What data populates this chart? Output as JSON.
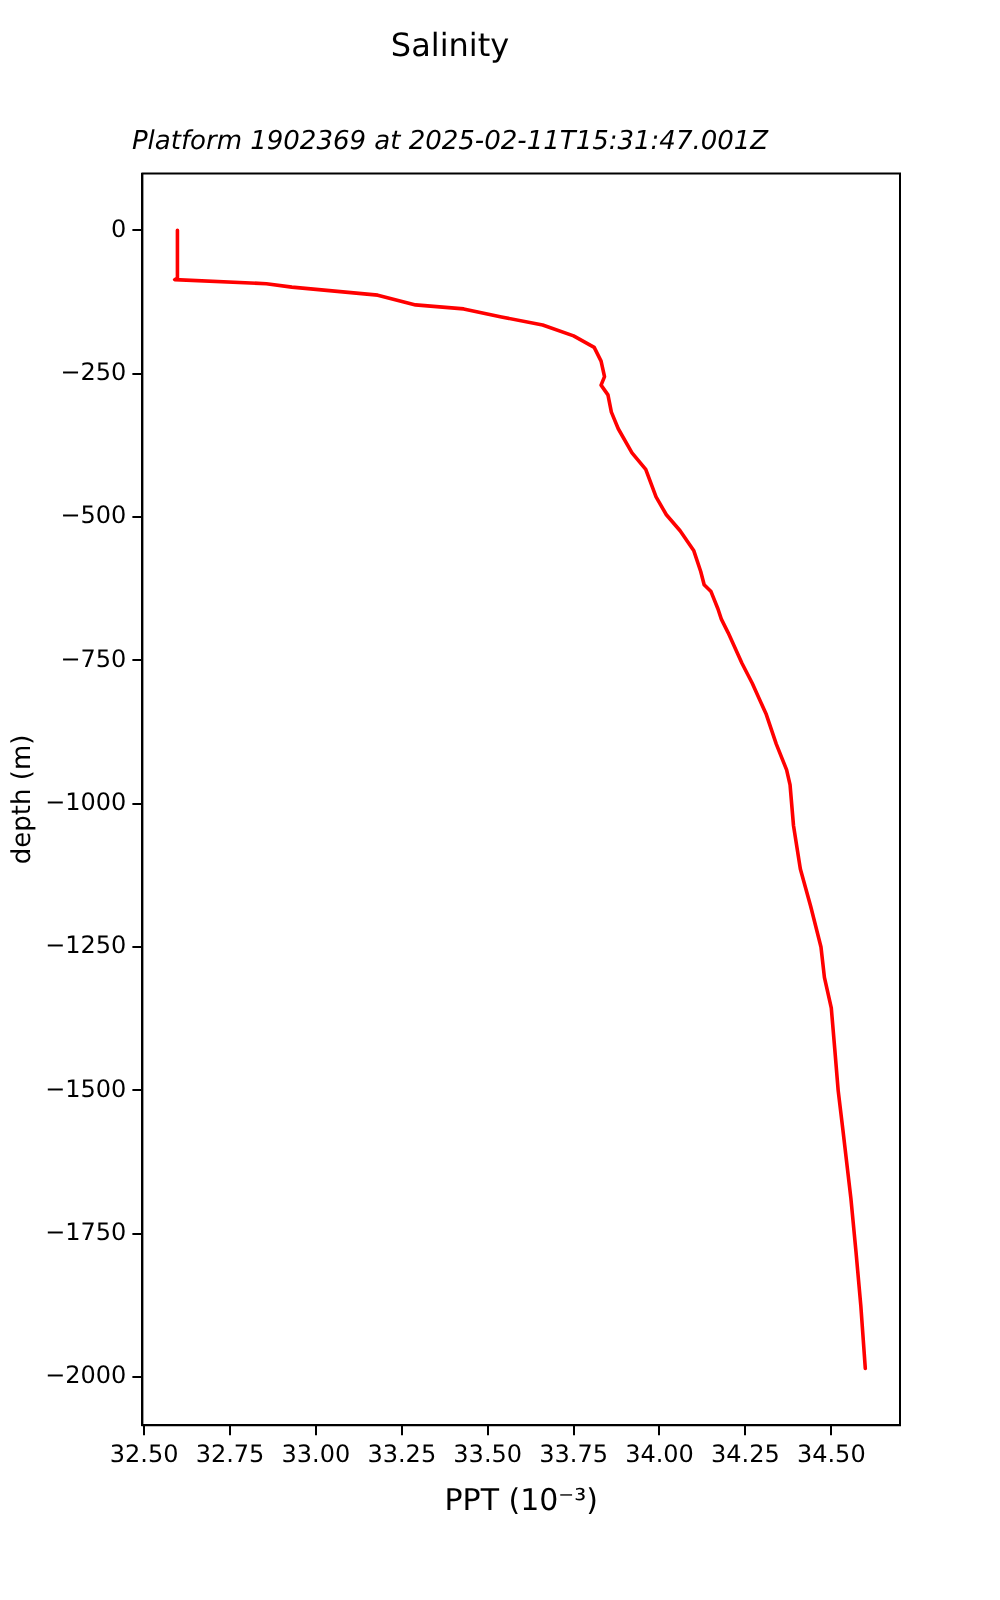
{
  "chart_data": {
    "type": "line",
    "title": "Salinity",
    "subtitle": "Platform 1902369 at 2025-02-11T15:31:47.001Z",
    "xlabel": "PPT (10⁻³)",
    "ylabel": "depth (m)",
    "xlim": [
      32.495,
      34.7
    ],
    "ylim": [
      -2084,
      99
    ],
    "xticks": [
      {
        "value": 32.5,
        "label": "32.50"
      },
      {
        "value": 32.75,
        "label": "32.75"
      },
      {
        "value": 33.0,
        "label": "33.00"
      },
      {
        "value": 33.25,
        "label": "33.25"
      },
      {
        "value": 33.5,
        "label": "33.50"
      },
      {
        "value": 33.75,
        "label": "33.75"
      },
      {
        "value": 34.0,
        "label": "34.00"
      },
      {
        "value": 34.25,
        "label": "34.25"
      },
      {
        "value": 34.5,
        "label": "34.50"
      }
    ],
    "yticks": [
      {
        "value": 0,
        "label": "0"
      },
      {
        "value": -250,
        "label": "−250"
      },
      {
        "value": -500,
        "label": "−500"
      },
      {
        "value": -750,
        "label": "−750"
      },
      {
        "value": -1000,
        "label": "−1000"
      },
      {
        "value": -1250,
        "label": "−1250"
      },
      {
        "value": -1500,
        "label": "−1500"
      },
      {
        "value": -1750,
        "label": "−1750"
      },
      {
        "value": -2000,
        "label": "−2000"
      }
    ],
    "grid": false,
    "legend": false,
    "marker": "none",
    "line_style": "solid",
    "series": [
      {
        "color": "#ff0000",
        "x": [
          32.597,
          32.597,
          32.589,
          32.856,
          32.93,
          33.18,
          33.29,
          33.43,
          33.54,
          33.66,
          33.75,
          33.81,
          33.83,
          33.84,
          33.83,
          33.85,
          33.86,
          33.88,
          33.92,
          33.96,
          33.99,
          34.02,
          34.06,
          34.1,
          34.12,
          34.13,
          34.15,
          34.17,
          34.18,
          34.2,
          34.24,
          34.27,
          34.31,
          34.34,
          34.37,
          34.38,
          34.39,
          34.41,
          34.44,
          34.47,
          34.48,
          34.5,
          34.51,
          34.52,
          34.534,
          34.557,
          34.572,
          34.586,
          34.599
        ],
        "values": [
          0,
          -83,
          -86,
          -93,
          -99,
          -113,
          -130,
          -137,
          -151,
          -165,
          -184,
          -204,
          -228,
          -255,
          -270,
          -287,
          -317,
          -346,
          -388,
          -417,
          -465,
          -496,
          -524,
          -559,
          -595,
          -618,
          -630,
          -660,
          -678,
          -702,
          -755,
          -790,
          -843,
          -896,
          -941,
          -967,
          -1038,
          -1114,
          -1179,
          -1250,
          -1303,
          -1356,
          -1427,
          -1500,
          -1570,
          -1688,
          -1782,
          -1876,
          -1985
        ]
      }
    ]
  }
}
